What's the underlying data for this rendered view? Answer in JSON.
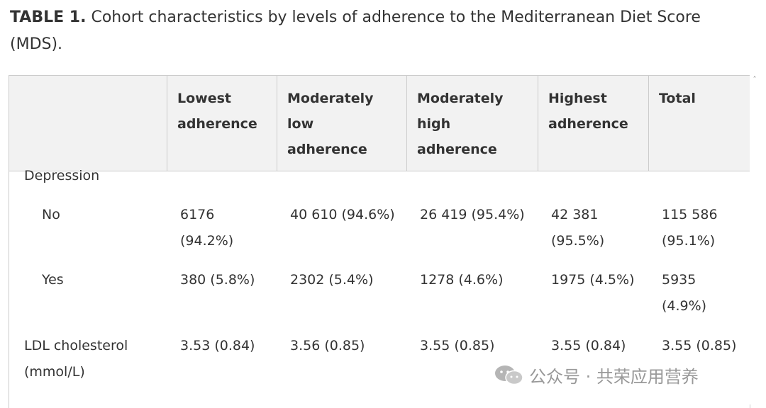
{
  "caption": {
    "label": "TABLE 1.",
    "title_line1": "Cohort characteristics by levels of adherence to the Mediterranean Diet Score",
    "title_line2": "(MDS)."
  },
  "table": {
    "headers": [
      {
        "line1": "",
        "line2": "",
        "line3": ""
      },
      {
        "line1": "Lowest",
        "line2": "adherence",
        "line3": ""
      },
      {
        "line1": "Moderately",
        "line2": "low adherence",
        "line3": ""
      },
      {
        "line1": "Moderately",
        "line2": "high",
        "line3": "adherence"
      },
      {
        "line1": "Highest",
        "line2": "adherence",
        "line3": ""
      },
      {
        "line1": "Total",
        "line2": "",
        "line3": ""
      }
    ],
    "section_depression": "Depression",
    "row_no": {
      "label": "No",
      "c1_l1": "6176",
      "c1_l2": "(94.2%)",
      "c2": "40 610 (94.6%)",
      "c3": "26 419 (95.4%)",
      "c4_l1": "42 381",
      "c4_l2": "(95.5%)",
      "c5_l1": "115 586",
      "c5_l2": "(95.1%)"
    },
    "row_yes": {
      "label": "Yes",
      "c1": "380 (5.8%)",
      "c2": "2302 (5.4%)",
      "c3": "1278 (4.6%)",
      "c4": "1975 (4.5%)",
      "c5_l1": "5935",
      "c5_l2": "(4.9%)"
    },
    "row_ldl": {
      "label_l1": "LDL cholesterol",
      "label_l2": "(mmol/L)",
      "c1": "3.53 (0.84)",
      "c2": "3.56 (0.85)",
      "c3": "3.55 (0.85)",
      "c4": "3.55 (0.84)",
      "c5": "3.55 (0.85)"
    }
  },
  "scrollbar": {
    "up_arrow": "˄"
  },
  "watermark": {
    "text": "公众号 · 共荣应用营养",
    "icon": "wechat-icon"
  }
}
